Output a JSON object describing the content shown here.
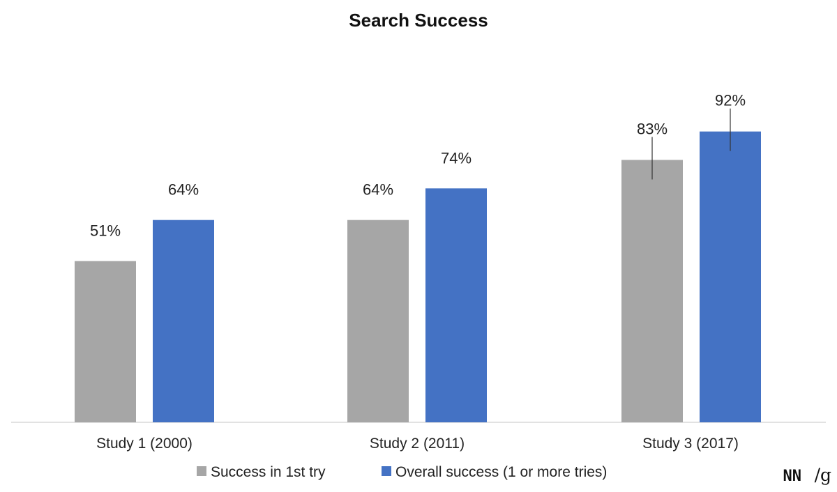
{
  "chart_data": {
    "type": "bar",
    "title": "Search Success",
    "categories": [
      "Study 1 (2000)",
      "Study 2 (2011)",
      "Study 3 (2017)"
    ],
    "series": [
      {
        "name": "Success in 1st try",
        "values": [
          51,
          64,
          83
        ],
        "labels": [
          "51%",
          "64%",
          "83%"
        ],
        "color": "#a6a6a6",
        "error_bars": [
          false,
          false,
          true
        ]
      },
      {
        "name": "Overall success (1 or more tries)",
        "values": [
          64,
          74,
          92
        ],
        "labels": [
          "64%",
          "74%",
          "92%"
        ],
        "color": "#4472c4",
        "error_bars": [
          false,
          false,
          true
        ]
      }
    ],
    "ylim": [
      0,
      100
    ],
    "grid": false,
    "legend_position": "bottom",
    "axis_line_color": "#d9d9d9",
    "logo": {
      "main": "NN",
      "slash": "/g"
    }
  }
}
